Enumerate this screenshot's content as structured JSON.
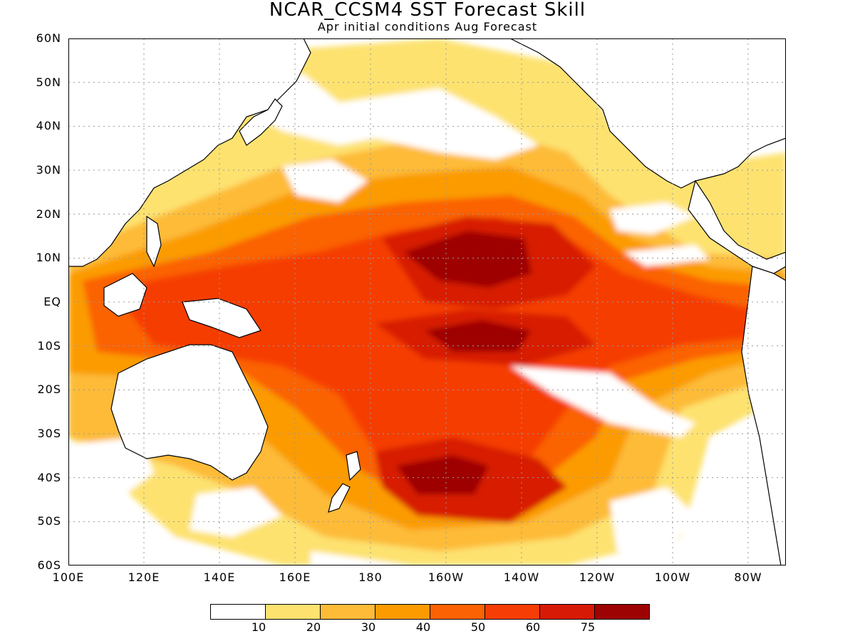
{
  "title": "NCAR_CCSM4 SST Forecast Skill",
  "subtitle": "Apr initial conditions  Aug Forecast",
  "map": {
    "lat_labels": [
      "60N",
      "50N",
      "40N",
      "30N",
      "20N",
      "10N",
      "EQ",
      "10S",
      "20S",
      "30S",
      "40S",
      "50S",
      "60S"
    ],
    "lon_labels": [
      "100E",
      "120E",
      "140E",
      "160E",
      "180",
      "160W",
      "140W",
      "120W",
      "100W",
      "80W"
    ],
    "extent": {
      "lon_min": 100,
      "lon_max": 290,
      "lat_min": -60,
      "lat_max": 60
    },
    "grid": true
  },
  "colorbar": {
    "colors": [
      "#ffffff",
      "#fde26f",
      "#fdbb38",
      "#fb9b00",
      "#fb6203",
      "#f53d05",
      "#d71a06",
      "#9e0303"
    ],
    "labels": [
      "10",
      "20",
      "30",
      "40",
      "50",
      "60",
      "75"
    ]
  }
}
